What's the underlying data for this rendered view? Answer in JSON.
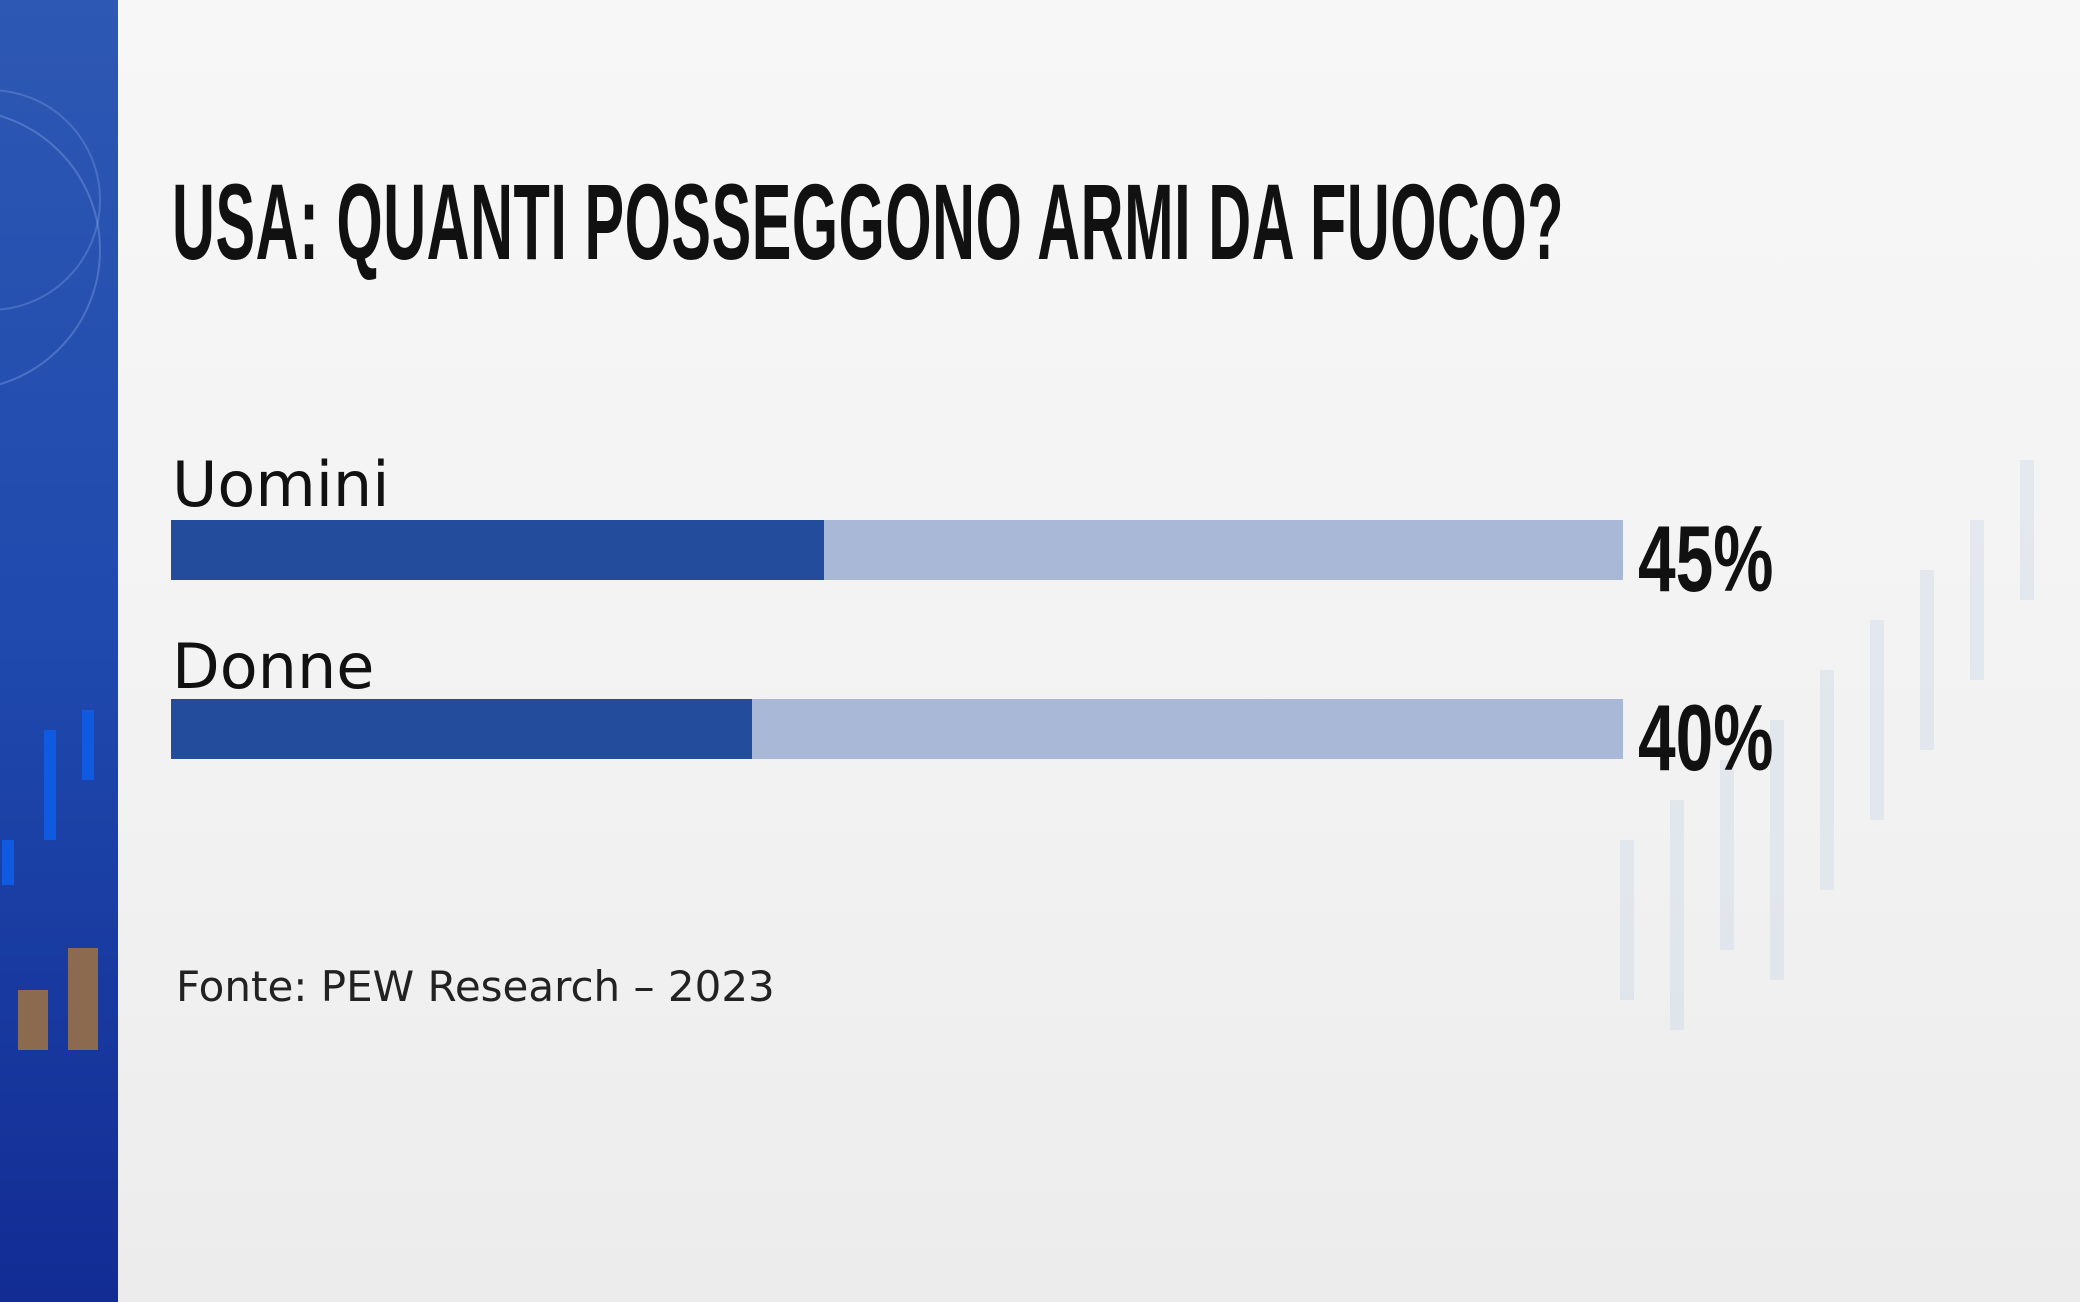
{
  "title": "USA: QUANTI POSSEGGONO ARMI DA FUOCO?",
  "source": "Fonte: PEW Research – 2023",
  "colors": {
    "bar_fill": "#234c9c",
    "bar_track": "#a9b8d6",
    "side_strip": "#1f49ad"
  },
  "chart_data": {
    "type": "bar",
    "orientation": "horizontal",
    "title": "USA: QUANTI POSSEGGONO ARMI DA FUOCO?",
    "categories": [
      "Uomini",
      "Donne"
    ],
    "values": [
      45,
      40
    ],
    "value_labels": [
      "45%",
      "40%"
    ],
    "xlim": [
      0,
      100
    ],
    "grid": false
  }
}
